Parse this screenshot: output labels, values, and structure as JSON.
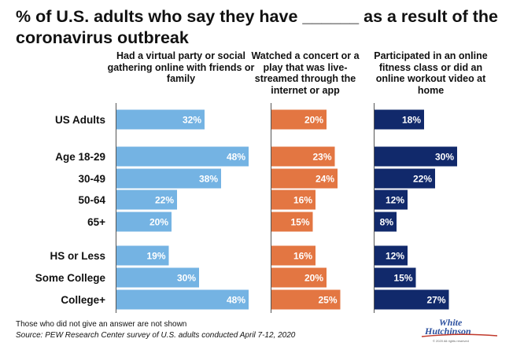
{
  "title": "% of U.S. adults who say they have ______ as a result of the coronavirus outbreak",
  "columns": [
    {
      "header": "Had a virtual party or social gathering online with friends or family",
      "color": "#74b3e3"
    },
    {
      "header": "Watched a concert or a play that was live-streamed through the internet or app",
      "color": "#e37642"
    },
    {
      "header": "Participated in an online fitness class or did an online workout video at home",
      "color": "#11296b"
    }
  ],
  "chart_data": {
    "type": "bar",
    "orientation": "horizontal",
    "categories": [
      "US Adults",
      "Age 18-29",
      "30-49",
      "50-64",
      "65+",
      "HS or Less",
      "Some College",
      "College+"
    ],
    "groups": [
      [
        "US Adults"
      ],
      [
        "Age 18-29",
        "30-49",
        "50-64",
        "65+"
      ],
      [
        "HS or Less",
        "Some College",
        "College+"
      ]
    ],
    "series": [
      {
        "name": "Had a virtual party or social gathering online with friends or family",
        "values": [
          32,
          48,
          38,
          22,
          20,
          19,
          30,
          48
        ],
        "color": "#74b3e3"
      },
      {
        "name": "Watched a concert or a play that was live-streamed through the internet or app",
        "values": [
          20,
          23,
          24,
          16,
          15,
          16,
          20,
          25
        ],
        "color": "#e37642"
      },
      {
        "name": "Participated in an online fitness class or did an online workout video at home",
        "values": [
          18,
          30,
          22,
          12,
          8,
          12,
          15,
          27
        ],
        "color": "#11296b"
      }
    ],
    "value_suffix": "%"
  },
  "footnote": "Those who did not give an answer are not shown",
  "source": "Source: PEW Research Center survey of U.S. adults conducted April 7-12, 2020",
  "logo": {
    "line1": "White",
    "line2": "Hutchinson",
    "small": "© 2020 All rights reserved"
  }
}
